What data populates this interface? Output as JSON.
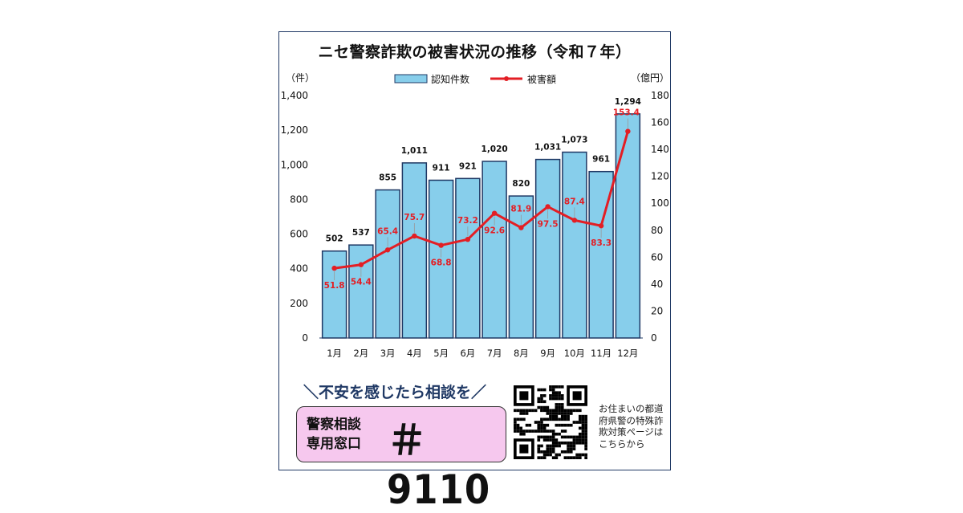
{
  "title": "ニセ警察詐欺の被害状況の推移（令和７年）",
  "chart_data": {
    "type": "bar+line",
    "categories": [
      "1月",
      "2月",
      "3月",
      "4月",
      "5月",
      "6月",
      "7月",
      "8月",
      "9月",
      "10月",
      "11月",
      "12月"
    ],
    "series": [
      {
        "name": "認知件数",
        "type": "bar",
        "axis": "left",
        "values": [
          502,
          537,
          855,
          1011,
          911,
          921,
          1020,
          820,
          1031,
          1073,
          961,
          1294
        ],
        "labels": [
          "502",
          "537",
          "855",
          "1,011",
          "911",
          "921",
          "1,020",
          "820",
          "1,031",
          "1,073",
          "961",
          "1,294"
        ],
        "color": "#87ceeb"
      },
      {
        "name": "被害額",
        "type": "line",
        "axis": "right",
        "values": [
          51.8,
          54.4,
          65.4,
          75.7,
          68.8,
          73.2,
          92.6,
          81.9,
          97.5,
          87.4,
          83.3,
          153.4
        ],
        "labels": [
          "51.8",
          "54.4",
          "65.4",
          "75.7",
          "68.8",
          "73.2",
          "92.6",
          "81.9",
          "97.5",
          "87.4",
          "83.3",
          "153.4"
        ],
        "color": "#e31e24"
      }
    ],
    "y_left": {
      "unit": "（件）",
      "range": [
        0,
        1400
      ],
      "ticks": [
        "0",
        "200",
        "400",
        "600",
        "800",
        "1,000",
        "1,200",
        "1,400"
      ]
    },
    "y_right": {
      "unit": "（億円）",
      "range": [
        0,
        180
      ],
      "ticks": [
        "0",
        "20",
        "40",
        "60",
        "80",
        "100",
        "120",
        "140",
        "160",
        "180"
      ]
    },
    "grid": false,
    "legend_position": "top"
  },
  "slogan": "＼不安を感じたら相談を／",
  "hotline": {
    "label_line1": "警察相談",
    "label_line2": "専用窓口",
    "number": "＃9110"
  },
  "qr_caption": "お住まいの都道府県警の特殊詐欺対策ページはこちらから"
}
